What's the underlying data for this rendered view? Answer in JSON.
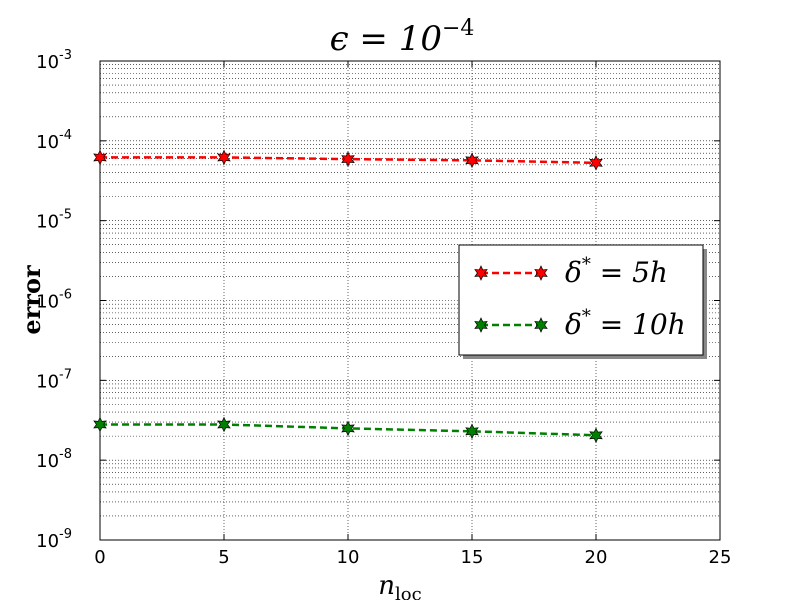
{
  "chart_data": {
    "type": "line",
    "title": "ϵ = 10^-4",
    "title_base": "ϵ = 10",
    "title_exp": "−4",
    "xlabel": "n",
    "xlabel_sub": "loc",
    "ylabel": "error",
    "xlim": [
      0,
      25
    ],
    "ylim": [
      1e-09,
      0.001
    ],
    "yscale": "log",
    "grid": true,
    "legend_position": "center-right",
    "x_ticks": [
      0,
      5,
      10,
      15,
      20,
      25
    ],
    "x_tick_labels": [
      "0",
      "5",
      "10",
      "15",
      "20",
      "25"
    ],
    "y_ticks": [
      {
        "base": "10",
        "exp": "-9",
        "value": 1e-09
      },
      {
        "base": "10",
        "exp": "-8",
        "value": 1e-08
      },
      {
        "base": "10",
        "exp": "-7",
        "value": 1e-07
      },
      {
        "base": "10",
        "exp": "-6",
        "value": 1e-06
      },
      {
        "base": "10",
        "exp": "-5",
        "value": 1e-05
      },
      {
        "base": "10",
        "exp": "-4",
        "value": 0.0001
      },
      {
        "base": "10",
        "exp": "-3",
        "value": 0.001
      }
    ],
    "x": [
      0,
      5,
      10,
      15,
      20
    ],
    "series": [
      {
        "name": "δ* = 5h",
        "name_parts": {
          "symbol": "δ",
          "sup": "*",
          "rest": " = 5h"
        },
        "color": "#ff0000",
        "marker": "star",
        "linestyle": "dashed",
        "values": [
          6.2e-05,
          6.2e-05,
          5.9e-05,
          5.7e-05,
          5.3e-05
        ]
      },
      {
        "name": "δ* = 10h",
        "name_parts": {
          "symbol": "δ",
          "sup": "*",
          "rest": " = 10h"
        },
        "color": "#008000",
        "marker": "star",
        "linestyle": "dashed",
        "values": [
          2.8e-08,
          2.8e-08,
          2.5e-08,
          2.3e-08,
          2.05e-08
        ]
      }
    ]
  }
}
